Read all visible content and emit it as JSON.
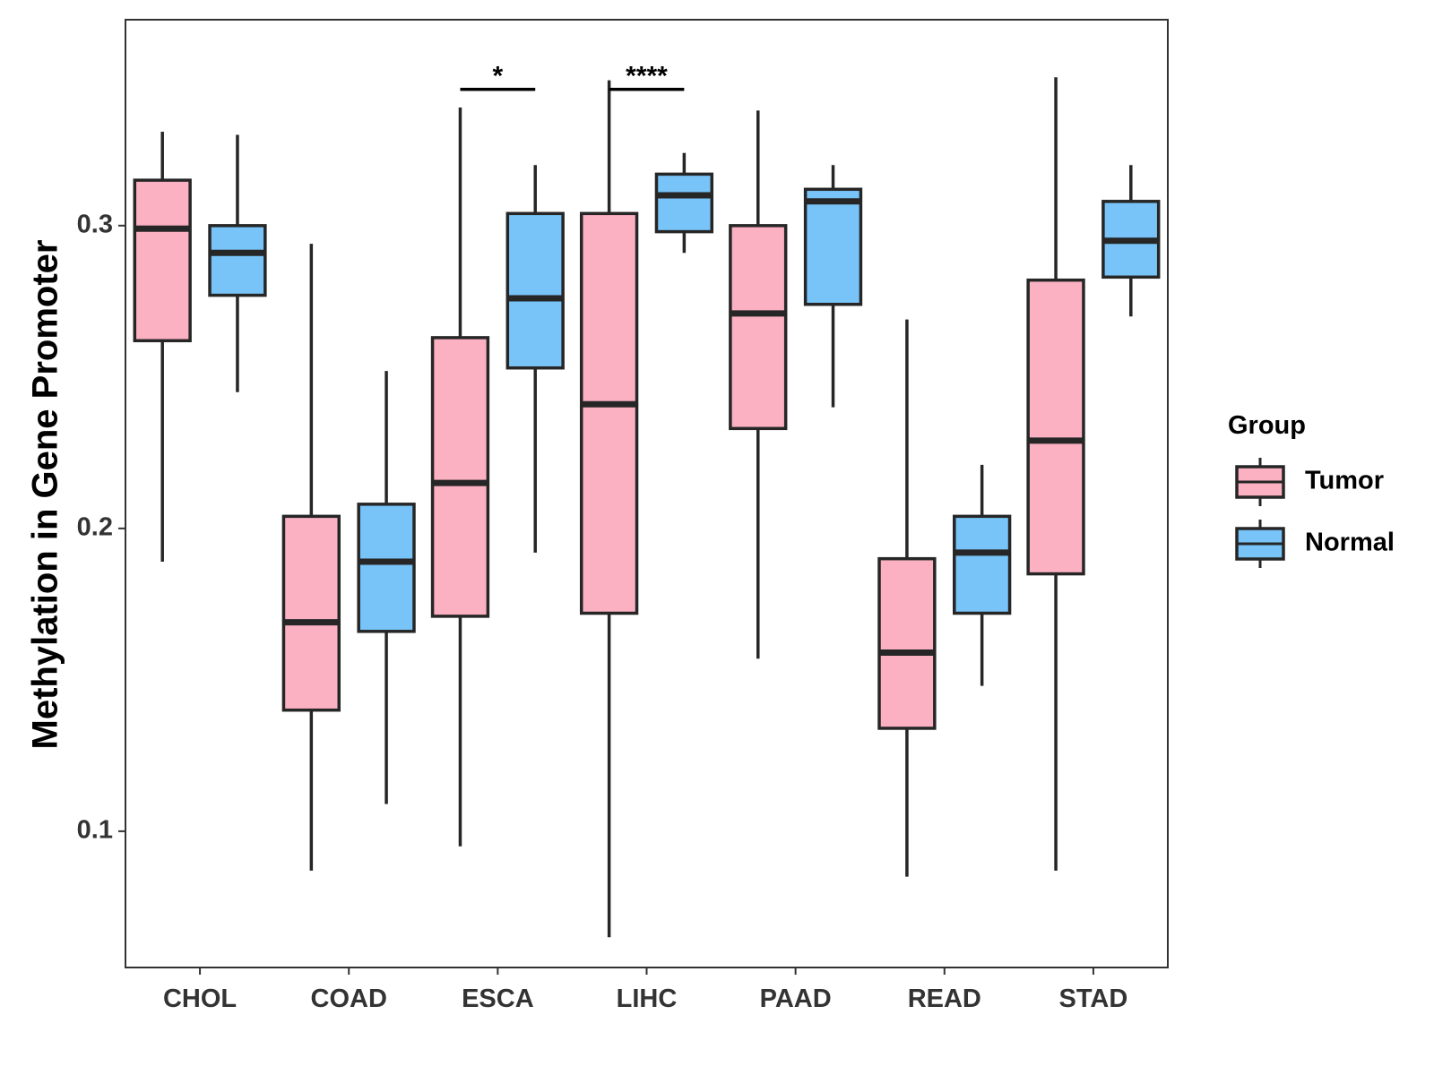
{
  "chart_data": {
    "type": "boxplot",
    "title": "",
    "xlabel": "",
    "ylabel": "Methylation in Gene Promoter",
    "ylim": [
      0.055,
      0.368
    ],
    "yticks": [
      0.1,
      0.2,
      0.3
    ],
    "ytick_labels": [
      "0.1",
      "0.2",
      "0.3"
    ],
    "categories": [
      "CHOL",
      "COAD",
      "ESCA",
      "LIHC",
      "PAAD",
      "READ",
      "STAD"
    ],
    "legend": {
      "title": "Group",
      "position": "right",
      "items": [
        {
          "name": "Tumor",
          "color": "#FBB1C2"
        },
        {
          "name": "Normal",
          "color": "#78C3F7"
        }
      ]
    },
    "series": [
      {
        "name": "Tumor",
        "color": "#FBB1C2",
        "boxes": [
          {
            "category": "CHOL",
            "whisker_low": 0.189,
            "q1": 0.262,
            "median": 0.299,
            "q3": 0.315,
            "whisker_high": 0.331
          },
          {
            "category": "COAD",
            "whisker_low": 0.087,
            "q1": 0.14,
            "median": 0.169,
            "q3": 0.204,
            "whisker_high": 0.294
          },
          {
            "category": "ESCA",
            "whisker_low": 0.095,
            "q1": 0.171,
            "median": 0.215,
            "q3": 0.263,
            "whisker_high": 0.339
          },
          {
            "category": "LIHC",
            "whisker_low": 0.065,
            "q1": 0.172,
            "median": 0.241,
            "q3": 0.304,
            "whisker_high": 0.348
          },
          {
            "category": "PAAD",
            "whisker_low": 0.157,
            "q1": 0.233,
            "median": 0.271,
            "q3": 0.3,
            "whisker_high": 0.338
          },
          {
            "category": "READ",
            "whisker_low": 0.085,
            "q1": 0.134,
            "median": 0.159,
            "q3": 0.19,
            "whisker_high": 0.269
          },
          {
            "category": "STAD",
            "whisker_low": 0.087,
            "q1": 0.185,
            "median": 0.229,
            "q3": 0.282,
            "whisker_high": 0.349
          }
        ]
      },
      {
        "name": "Normal",
        "color": "#78C3F7",
        "boxes": [
          {
            "category": "CHOL",
            "whisker_low": 0.245,
            "q1": 0.277,
            "median": 0.291,
            "q3": 0.3,
            "whisker_high": 0.33
          },
          {
            "category": "COAD",
            "whisker_low": 0.109,
            "q1": 0.166,
            "median": 0.189,
            "q3": 0.208,
            "whisker_high": 0.252
          },
          {
            "category": "ESCA",
            "whisker_low": 0.192,
            "q1": 0.253,
            "median": 0.276,
            "q3": 0.304,
            "whisker_high": 0.32
          },
          {
            "category": "LIHC",
            "whisker_low": 0.291,
            "q1": 0.298,
            "median": 0.31,
            "q3": 0.317,
            "whisker_high": 0.324
          },
          {
            "category": "PAAD",
            "whisker_low": 0.24,
            "q1": 0.274,
            "median": 0.308,
            "q3": 0.312,
            "whisker_high": 0.32
          },
          {
            "category": "READ",
            "whisker_low": 0.148,
            "q1": 0.172,
            "median": 0.192,
            "q3": 0.204,
            "whisker_high": 0.221
          },
          {
            "category": "STAD",
            "whisker_low": 0.27,
            "q1": 0.283,
            "median": 0.295,
            "q3": 0.308,
            "whisker_high": 0.32
          }
        ]
      }
    ],
    "annotations": [
      {
        "category": "ESCA",
        "label": "*",
        "y": 0.345
      },
      {
        "category": "LIHC",
        "label": "****",
        "y": 0.345
      }
    ]
  }
}
